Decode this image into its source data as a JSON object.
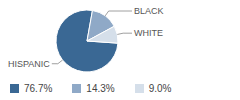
{
  "chart_data": {
    "type": "pie",
    "categories": [
      "HISPANIC",
      "BLACK",
      "WHITE"
    ],
    "values": [
      76.7,
      14.3,
      9.0
    ],
    "value_labels": [
      "76.7%",
      "14.3%",
      "9.0%"
    ],
    "colors": [
      "#3a6894",
      "#8fa9c7",
      "#d5dfea"
    ],
    "legend": "bottom"
  }
}
